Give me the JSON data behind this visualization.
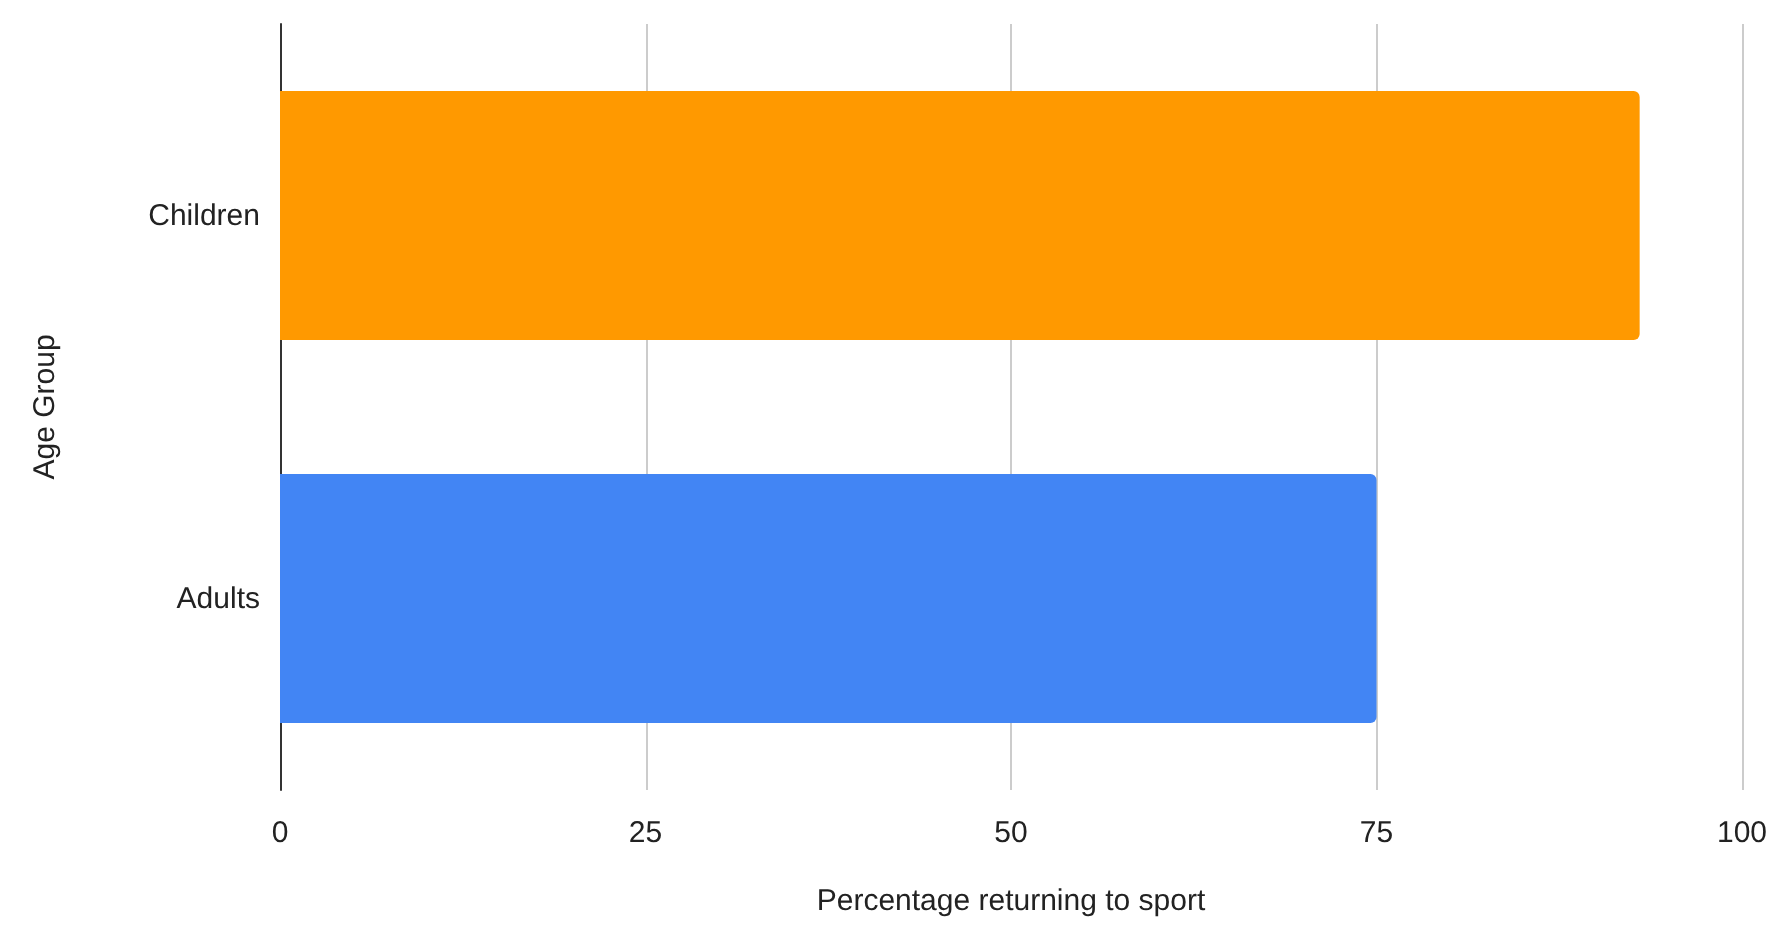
{
  "chart_data": {
    "type": "bar",
    "orientation": "horizontal",
    "categories": [
      "Children",
      "Adults"
    ],
    "values": [
      93,
      75
    ],
    "colors": [
      "#ff9900",
      "#4285f4"
    ],
    "xlabel": "Percentage returning to sport",
    "ylabel": "Age Group",
    "xlim": [
      0,
      100
    ],
    "xticks": [
      0,
      25,
      50,
      75,
      100
    ],
    "grid": "x"
  }
}
